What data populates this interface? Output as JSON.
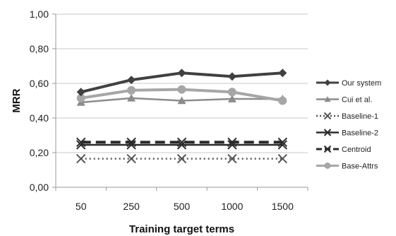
{
  "chart_data": {
    "type": "line",
    "title": "",
    "xlabel": "Training target terms",
    "ylabel": "MRR",
    "categories": [
      "50",
      "250",
      "500",
      "1000",
      "1500"
    ],
    "ylim": [
      0,
      1
    ],
    "yticks": [
      "0,00",
      "0,20",
      "0,40",
      "0,60",
      "0,80",
      "1,00"
    ],
    "grid": true,
    "legend": "right",
    "series": [
      {
        "name": "Our system",
        "values": [
          0.55,
          0.62,
          0.66,
          0.64,
          0.66
        ],
        "color": "#404040",
        "marker": "diamond",
        "dash": "solid",
        "width": 4
      },
      {
        "name": "Cui et al.",
        "values": [
          0.49,
          0.515,
          0.5,
          0.51,
          0.51
        ],
        "color": "#8c8c8c",
        "marker": "triangle",
        "dash": "solid",
        "width": 2.5
      },
      {
        "name": "Baseline-1",
        "values": [
          0.165,
          0.165,
          0.165,
          0.165,
          0.165
        ],
        "color": "#555555",
        "marker": "x",
        "dash": "dotted",
        "width": 2.5
      },
      {
        "name": "Baseline-2",
        "values": [
          0.245,
          0.245,
          0.245,
          0.245,
          0.245
        ],
        "color": "#2b2b2b",
        "marker": "x",
        "dash": "solid",
        "width": 2.5
      },
      {
        "name": "Centroid",
        "values": [
          0.26,
          0.26,
          0.26,
          0.26,
          0.26
        ],
        "color": "#2b2b2b",
        "marker": "x",
        "dash": "dashed",
        "width": 4
      },
      {
        "name": "Base-Attrs",
        "values": [
          0.515,
          0.56,
          0.565,
          0.55,
          0.5
        ],
        "color": "#a6a6a6",
        "marker": "circle",
        "dash": "solid",
        "width": 4
      }
    ]
  }
}
